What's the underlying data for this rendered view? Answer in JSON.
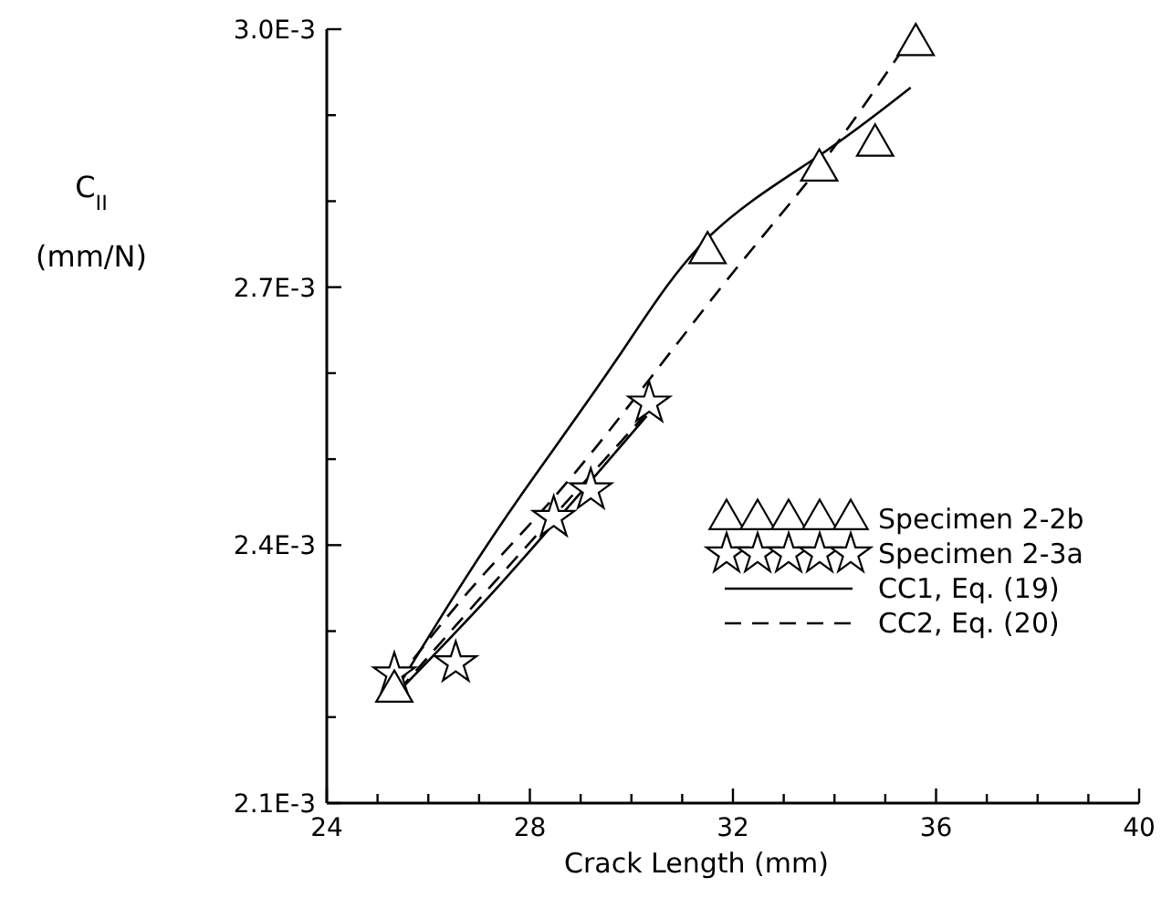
{
  "chart_data": {
    "type": "scatter",
    "xlabel": "Crack Length (mm)",
    "ylabel": "C$_{II}$ (mm/N)",
    "xlim": [
      24,
      40
    ],
    "ylim": [
      0.0021,
      0.003
    ],
    "xticks": [
      24,
      {
        "value": 25,
        "label": null
      },
      {
        "value": 26,
        "label": null
      },
      {
        "value": 27,
        "label": null
      },
      28,
      {
        "value": 29,
        "label": null
      },
      {
        "value": 30,
        "label": null
      },
      {
        "value": 31,
        "label": null
      },
      32,
      {
        "value": 33,
        "label": null
      },
      {
        "value": 34,
        "label": null
      },
      {
        "value": 35,
        "label": null
      },
      36,
      {
        "value": 37,
        "label": null
      },
      {
        "value": 38,
        "label": null
      },
      {
        "value": 39,
        "label": null
      },
      40
    ],
    "yticks": [
      {
        "value": 0.0021,
        "label": "2.1E-3"
      },
      {
        "value": 0.0022,
        "label": null
      },
      {
        "value": 0.0023,
        "label": null
      },
      {
        "value": 0.0024,
        "label": "2.4E-3"
      },
      {
        "value": 0.0025,
        "label": null
      },
      {
        "value": 0.0026,
        "label": null
      },
      {
        "value": 0.0027,
        "label": "2.7E-3"
      },
      {
        "value": 0.0028,
        "label": null
      },
      {
        "value": 0.0029,
        "label": null
      },
      {
        "value": 0.003,
        "label": "3.0E-3"
      }
    ],
    "grid": false,
    "legend": "right",
    "series": [
      {
        "name": "Specimen 2-2b",
        "marker": "triangle",
        "color": "#000000",
        "x": [
          25.33,
          31.5,
          33.7,
          34.8,
          35.6
        ],
        "values": [
          0.00223,
          0.00274,
          0.002836,
          0.002865,
          0.002982
        ]
      },
      {
        "name": "Specimen 2-3a",
        "marker": "star",
        "color": "#000000",
        "x": [
          25.33,
          26.54,
          28.47,
          29.2,
          30.35
        ],
        "values": [
          0.00225,
          0.002263,
          0.002432,
          0.002464,
          0.002565
        ]
      },
      {
        "name": "CC1, Eq. (19)",
        "type": "line",
        "line_style": "solid",
        "marker": "none",
        "color": "#000000",
        "x": [
          25.4,
          26.5,
          27.85,
          29.71,
          31.5,
          33.7,
          35.5
        ],
        "values": [
          0.002235,
          0.00234,
          0.00246,
          0.002616,
          0.002757,
          0.002853,
          0.002932
        ]
      },
      {
        "name": "CC2, Eq. (20)",
        "type": "line",
        "line_style": "dashed",
        "marker": "none",
        "color": "#000000",
        "x": [
          25.37,
          27,
          29.0,
          31.77,
          33.7,
          35.5
        ],
        "values": [
          0.002242,
          0.00236,
          0.002492,
          0.0027,
          0.00284,
          0.00299
        ]
      },
      {
        "type": "line",
        "line_style": "solid",
        "marker": "none",
        "color": "#000000",
        "x": [
          25.5,
          27.5,
          30.3
        ],
        "values": [
          0.002235,
          0.00236,
          0.00255
        ]
      },
      {
        "type": "line",
        "line_style": "dashed",
        "marker": "none",
        "color": "#000000",
        "x": [
          25.4,
          27.5,
          30.4
        ],
        "values": [
          0.00223,
          0.00237,
          0.00256
        ]
      }
    ]
  }
}
